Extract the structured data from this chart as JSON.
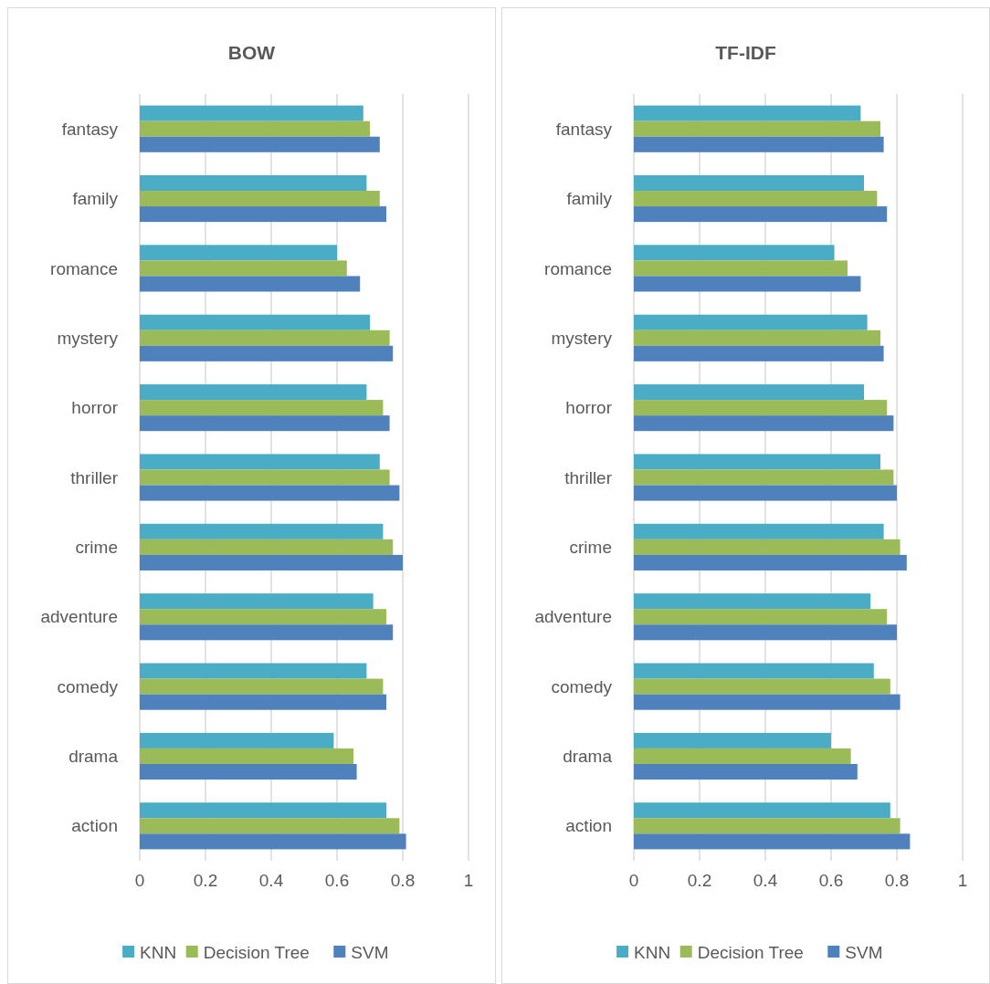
{
  "chart_data": [
    {
      "type": "bar",
      "orientation": "horizontal",
      "title": "BOW",
      "categories": [
        "fantasy",
        "family",
        "romance",
        "mystery",
        "horror",
        "thriller",
        "crime",
        "adventure",
        "comedy",
        "drama",
        "action"
      ],
      "xlim": [
        0,
        1
      ],
      "xticks": [
        0,
        0.2,
        0.4,
        0.6,
        0.8,
        1
      ],
      "grid": "x",
      "legend": "bottom",
      "series": [
        {
          "name": "KNN",
          "color": "#4bacc6",
          "values": [
            0.68,
            0.69,
            0.6,
            0.7,
            0.69,
            0.73,
            0.74,
            0.71,
            0.69,
            0.59,
            0.75
          ]
        },
        {
          "name": "Decision Tree",
          "color": "#9bbb59",
          "values": [
            0.7,
            0.73,
            0.63,
            0.76,
            0.74,
            0.76,
            0.77,
            0.75,
            0.74,
            0.65,
            0.79
          ]
        },
        {
          "name": "SVM",
          "color": "#4f81bd",
          "values": [
            0.73,
            0.75,
            0.67,
            0.77,
            0.76,
            0.79,
            0.8,
            0.77,
            0.75,
            0.66,
            0.81
          ]
        }
      ]
    },
    {
      "type": "bar",
      "orientation": "horizontal",
      "title": "TF-IDF",
      "categories": [
        "fantasy",
        "family",
        "romance",
        "mystery",
        "horror",
        "thriller",
        "crime",
        "adventure",
        "comedy",
        "drama",
        "action"
      ],
      "xlim": [
        0,
        1
      ],
      "xticks": [
        0,
        0.2,
        0.4,
        0.6,
        0.8,
        1
      ],
      "grid": "x",
      "legend": "bottom",
      "series": [
        {
          "name": "KNN",
          "color": "#4bacc6",
          "values": [
            0.69,
            0.7,
            0.61,
            0.71,
            0.7,
            0.75,
            0.76,
            0.72,
            0.73,
            0.6,
            0.78
          ]
        },
        {
          "name": "Decision Tree",
          "color": "#9bbb59",
          "values": [
            0.75,
            0.74,
            0.65,
            0.75,
            0.77,
            0.79,
            0.81,
            0.77,
            0.78,
            0.66,
            0.81
          ]
        },
        {
          "name": "SVM",
          "color": "#4f81bd",
          "values": [
            0.76,
            0.77,
            0.69,
            0.76,
            0.79,
            0.8,
            0.83,
            0.8,
            0.81,
            0.68,
            0.84
          ]
        }
      ]
    }
  ]
}
